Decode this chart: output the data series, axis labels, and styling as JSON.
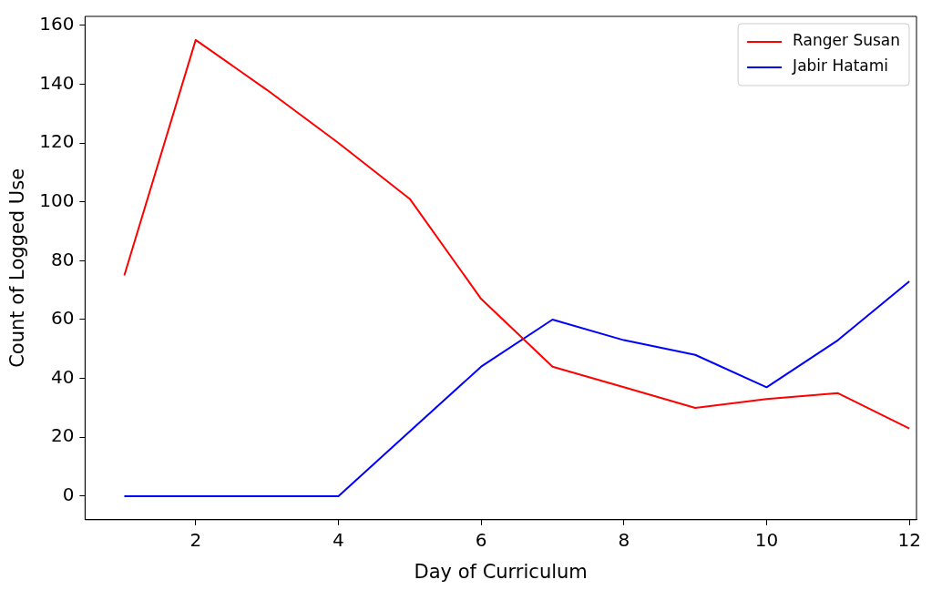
{
  "chart_data": {
    "type": "line",
    "xlabel": "Day of Curriculum",
    "ylabel": "Count of Logged Use",
    "x": [
      1,
      2,
      3,
      4,
      5,
      6,
      7,
      8,
      9,
      10,
      11,
      12
    ],
    "series": [
      {
        "name": "Ranger Susan",
        "color": "#ff0000",
        "values": [
          75,
          155,
          138,
          120,
          101,
          67,
          44,
          37,
          30,
          33,
          35,
          23
        ]
      },
      {
        "name": "Jabir Hatami",
        "color": "#0000ff",
        "values": [
          0,
          0,
          0,
          0,
          22,
          44,
          60,
          53,
          48,
          37,
          53,
          73
        ]
      }
    ],
    "xlim": [
      0.45,
      12.1
    ],
    "ylim": [
      -8,
      163
    ],
    "xticks": [
      2,
      4,
      6,
      8,
      10,
      12
    ],
    "yticks": [
      0,
      20,
      40,
      60,
      80,
      100,
      120,
      140,
      160
    ],
    "grid": false,
    "legend": "top right",
    "marker": "none",
    "line_style": "solid"
  }
}
